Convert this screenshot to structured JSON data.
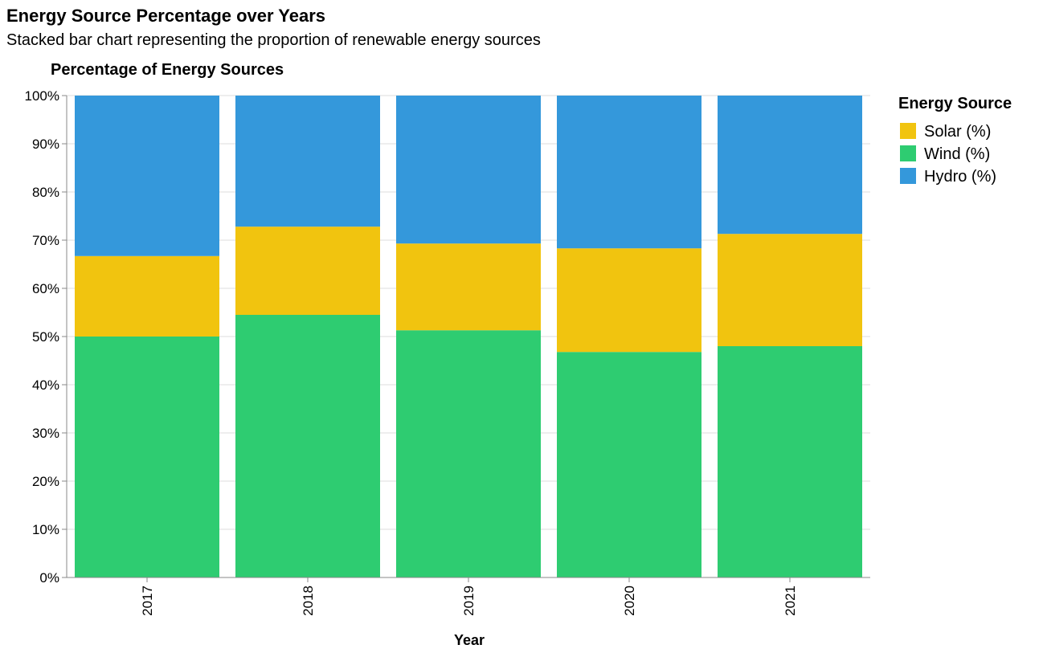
{
  "page": {
    "title": "Energy Source Percentage over Years",
    "subtitle": "Stacked bar chart representing the proportion of renewable energy sources"
  },
  "chart_data": {
    "type": "bar",
    "stacked": true,
    "normalized": true,
    "title": "Percentage of Energy Sources",
    "xlabel": "Year",
    "ylabel": "",
    "ylim": [
      0,
      100
    ],
    "y_ticks": [
      "0%",
      "10%",
      "20%",
      "30%",
      "40%",
      "50%",
      "60%",
      "70%",
      "80%",
      "90%",
      "100%"
    ],
    "grid": true,
    "categories": [
      "2017",
      "2018",
      "2019",
      "2020",
      "2021"
    ],
    "series": [
      {
        "name": "Wind (%)",
        "color": "#2ecc71",
        "values": [
          50.0,
          54.5,
          51.3,
          46.8,
          48.0
        ]
      },
      {
        "name": "Solar (%)",
        "color": "#f1c40f",
        "values": [
          16.7,
          18.3,
          18.0,
          21.5,
          23.3
        ]
      },
      {
        "name": "Hydro (%)",
        "color": "#3498db",
        "values": [
          33.3,
          27.2,
          30.7,
          31.7,
          28.7
        ]
      }
    ],
    "legend": {
      "title": "Energy Source",
      "position": "right",
      "items": [
        {
          "label": "Solar (%)",
          "color": "#f1c40f"
        },
        {
          "label": "Wind (%)",
          "color": "#2ecc71"
        },
        {
          "label": "Hydro (%)",
          "color": "#3498db"
        }
      ]
    }
  }
}
